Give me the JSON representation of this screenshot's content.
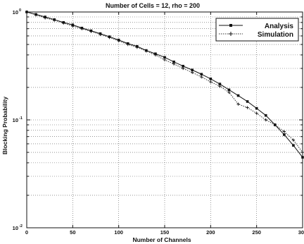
{
  "chart_data": {
    "type": "line",
    "title": "Number of Cells = 12, rho = 200",
    "xlabel": "Number of Channels",
    "ylabel": "Blocking Probability",
    "xlim": [
      0,
      300
    ],
    "ylim": [
      0.01,
      1
    ],
    "yscale": "log",
    "grid": true,
    "legend_position": "top-right",
    "x_ticks": [
      "0",
      "50",
      "100",
      "150",
      "200",
      "250",
      "300"
    ],
    "y_ticks": [
      {
        "base": "10",
        "exp": "-2",
        "value": 0.01
      },
      {
        "base": "10",
        "exp": "-1",
        "value": 0.1
      },
      {
        "base": "10",
        "exp": "0",
        "value": 1
      }
    ],
    "x": [
      0,
      10,
      20,
      30,
      40,
      50,
      60,
      70,
      80,
      90,
      100,
      110,
      120,
      130,
      140,
      150,
      160,
      170,
      180,
      190,
      200,
      210,
      220,
      230,
      240,
      250,
      260,
      270,
      280,
      290,
      300
    ],
    "series": [
      {
        "name": "Analysis",
        "marker": "square",
        "line": "solid",
        "values": [
          1.0,
          0.95,
          0.9,
          0.85,
          0.8,
          0.76,
          0.71,
          0.67,
          0.63,
          0.59,
          0.55,
          0.51,
          0.48,
          0.44,
          0.41,
          0.38,
          0.345,
          0.315,
          0.29,
          0.265,
          0.24,
          0.215,
          0.19,
          0.168,
          0.148,
          0.128,
          0.11,
          0.09,
          0.073,
          0.058,
          0.045
        ]
      },
      {
        "name": "Simulation",
        "marker": "plus",
        "line": "dotted",
        "values": [
          1.0,
          0.94,
          0.88,
          0.84,
          0.79,
          0.74,
          0.7,
          0.66,
          0.62,
          0.58,
          0.54,
          0.5,
          0.47,
          0.435,
          0.4,
          0.36,
          0.33,
          0.3,
          0.275,
          0.25,
          0.225,
          0.205,
          0.18,
          0.14,
          0.13,
          0.115,
          0.1,
          0.09,
          0.078,
          0.065,
          0.05
        ]
      }
    ],
    "colors": {
      "frame": "#111111",
      "grid": "#555555",
      "analysis": "#111111",
      "simulation": "#333333"
    }
  }
}
